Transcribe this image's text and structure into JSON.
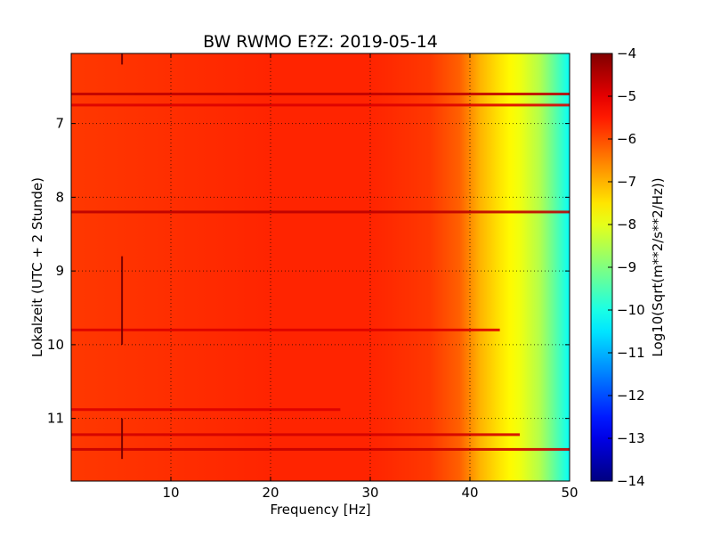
{
  "chart_data": {
    "type": "heatmap",
    "title": "BW RWMO E?Z: 2019-05-14",
    "xlabel": "Frequency [Hz]",
    "ylabel": "Lokalzeit (UTC + 2 Stunde)",
    "xlim": [
      0,
      50
    ],
    "ylim": [
      11.85,
      6.05
    ],
    "y_inverted": true,
    "x_ticks": [
      10,
      20,
      30,
      40,
      50
    ],
    "x_tick_labels": [
      "10",
      "20",
      "30",
      "40",
      "50"
    ],
    "y_ticks": [
      7,
      8,
      9,
      10,
      11
    ],
    "y_tick_labels": [
      "7",
      "8",
      "9",
      "10",
      "11"
    ],
    "grid": true,
    "colormap": "jet",
    "colorbar": {
      "label": "Log10(Sqrt(m**2/s**2/Hz))",
      "range": [
        -14,
        -4
      ],
      "ticks": [
        -4,
        -5,
        -6,
        -7,
        -8,
        -9,
        -10,
        -11,
        -12,
        -13,
        -14
      ],
      "tick_labels": [
        "−4",
        "−5",
        "−6",
        "−7",
        "−8",
        "−9",
        "−10",
        "−11",
        "−12",
        "−13",
        "−14"
      ]
    },
    "frequency_profile_db": [
      {
        "f": 0,
        "v": -5.8
      },
      {
        "f": 10,
        "v": -5.7
      },
      {
        "f": 20,
        "v": -5.6
      },
      {
        "f": 30,
        "v": -5.6
      },
      {
        "f": 36,
        "v": -5.8
      },
      {
        "f": 39,
        "v": -6.2
      },
      {
        "f": 41,
        "v": -7.0
      },
      {
        "f": 43,
        "v": -7.5
      },
      {
        "f": 45,
        "v": -7.9
      },
      {
        "f": 47,
        "v": -8.5
      },
      {
        "f": 48.5,
        "v": -9.3
      },
      {
        "f": 50,
        "v": -10.2
      }
    ],
    "strong_horizontal_bands": [
      {
        "time": 6.6,
        "f_end": 50,
        "value": -4.6
      },
      {
        "time": 6.75,
        "f_end": 50,
        "value": -4.9
      },
      {
        "time": 8.2,
        "f_end": 50,
        "value": -4.6
      },
      {
        "time": 9.8,
        "f_end": 43,
        "value": -4.9
      },
      {
        "time": 10.88,
        "f_end": 27,
        "value": -4.9
      },
      {
        "time": 11.22,
        "f_end": 45,
        "value": -4.8
      },
      {
        "time": 11.42,
        "f_end": 50,
        "value": -4.7
      }
    ],
    "vertical_lines": [
      {
        "freq": 5.1,
        "t_start": 6.05,
        "t_end": 6.2
      },
      {
        "freq": 5.1,
        "t_start": 8.8,
        "t_end": 10.0
      },
      {
        "freq": 5.1,
        "t_start": 11.0,
        "t_end": 11.55
      }
    ]
  }
}
